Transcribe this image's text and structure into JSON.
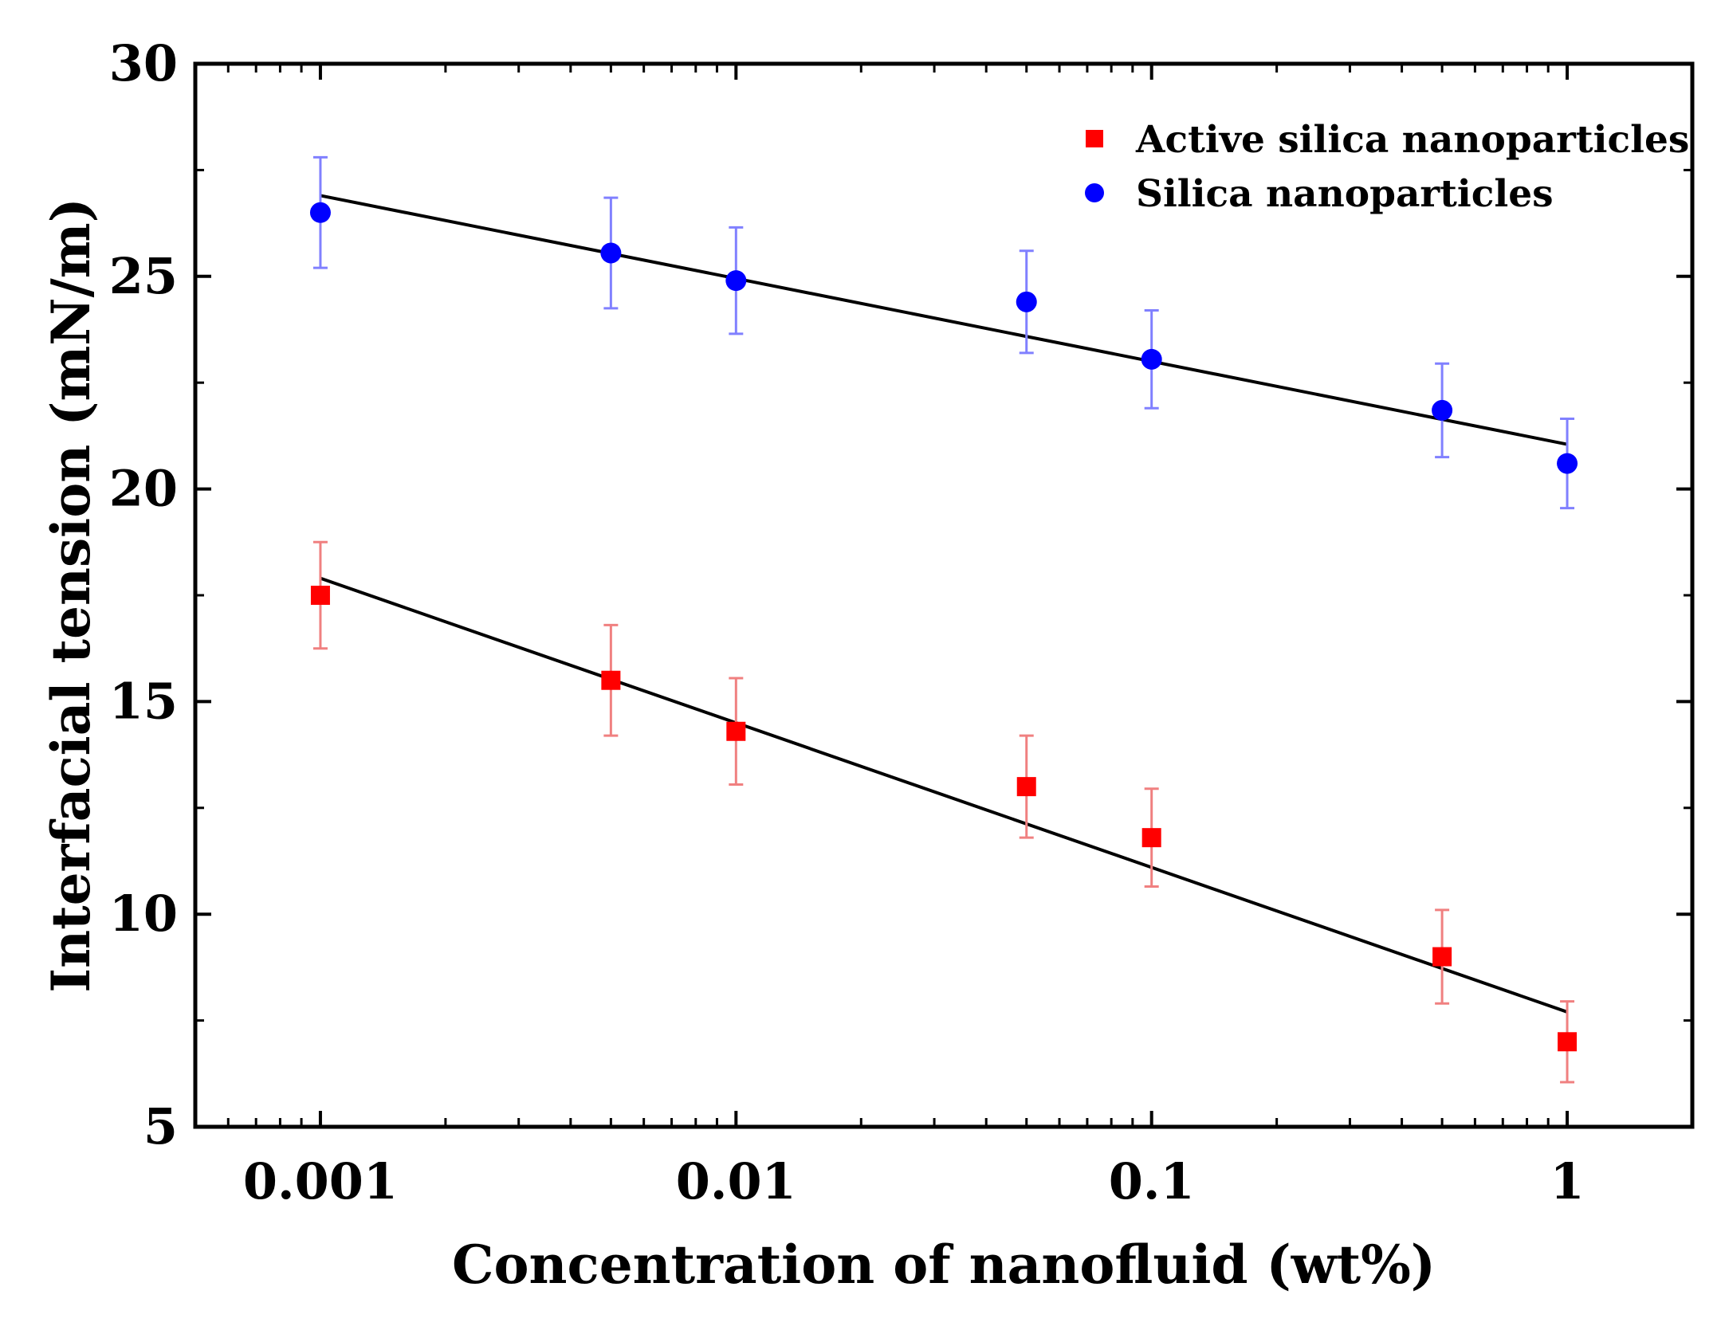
{
  "chart_data": {
    "type": "scatter",
    "title": "",
    "xlabel": "Concentration of nanofluid (wt%)",
    "ylabel": "Interfacial tension (mN/m)",
    "xscale": "log",
    "xlim": [
      0.0005,
      2.0
    ],
    "ylim": [
      5,
      30
    ],
    "grid": false,
    "legend_position": "top-right",
    "x_ticks": [
      0.001,
      0.01,
      0.1,
      1
    ],
    "x_tick_labels": [
      "0.001",
      "0.01",
      "0.1",
      "1"
    ],
    "y_ticks": [
      5,
      10,
      15,
      20,
      25,
      30
    ],
    "y_tick_labels": [
      "5",
      "10",
      "15",
      "20",
      "25",
      "30"
    ],
    "series": [
      {
        "name": "Active silica nanoparticles",
        "marker": "square",
        "color": "#ff0000",
        "error_color": "#f08080",
        "x": [
          0.001,
          0.005,
          0.01,
          0.05,
          0.1,
          0.5,
          1
        ],
        "y": [
          17.5,
          15.5,
          14.3,
          13.0,
          11.8,
          9.0,
          7.0
        ],
        "error": [
          1.25,
          1.3,
          1.25,
          1.2,
          1.15,
          1.1,
          0.95
        ],
        "fit": {
          "x": [
            0.001,
            1
          ],
          "y": [
            17.9,
            7.7
          ]
        }
      },
      {
        "name": "Silica nanoparticles",
        "marker": "circle",
        "color": "#0000ff",
        "error_color": "#8080ff",
        "x": [
          0.001,
          0.005,
          0.01,
          0.05,
          0.1,
          0.5,
          1
        ],
        "y": [
          26.5,
          25.55,
          24.9,
          24.4,
          23.05,
          21.85,
          20.6
        ],
        "error": [
          1.3,
          1.3,
          1.25,
          1.2,
          1.15,
          1.1,
          1.05
        ],
        "fit": {
          "x": [
            0.001,
            1
          ],
          "y": [
            26.9,
            21.05
          ]
        }
      }
    ]
  }
}
